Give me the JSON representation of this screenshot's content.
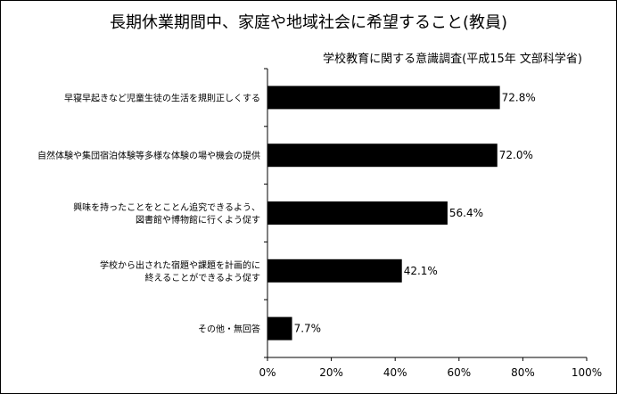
{
  "chart_data": {
    "type": "bar",
    "orientation": "horizontal",
    "title": "長期休業期間中、家庭や地域社会に希望すること(教員)",
    "subtitle": "学校教育に関する意識調査(平成15年 文部科学省)",
    "categories": [
      [
        "早寝早起きなど児童生徒の生活を規則正しくする"
      ],
      [
        "自然体験や集団宿泊体験等多様な体験の場や機会の提供"
      ],
      [
        "興味を持ったことをとことん追究できるよう、",
        "図書館や博物館に行くよう促す"
      ],
      [
        "学校から出された宿題や課題を計画的に",
        "終えることができるよう促す"
      ],
      [
        "その他・無回答"
      ]
    ],
    "values": [
      72.8,
      72.0,
      56.4,
      42.1,
      7.7
    ],
    "value_labels": [
      "72.8%",
      "72.0%",
      "56.4%",
      "42.1%",
      "7.7%"
    ],
    "xlim": [
      0,
      100
    ],
    "x_ticks": [
      "0%",
      "20%",
      "40%",
      "60%",
      "80%",
      "100%"
    ],
    "x_tick_values": [
      0,
      20,
      40,
      60,
      80,
      100
    ],
    "grid": false,
    "legend": "none",
    "bar_color": "#000000"
  }
}
